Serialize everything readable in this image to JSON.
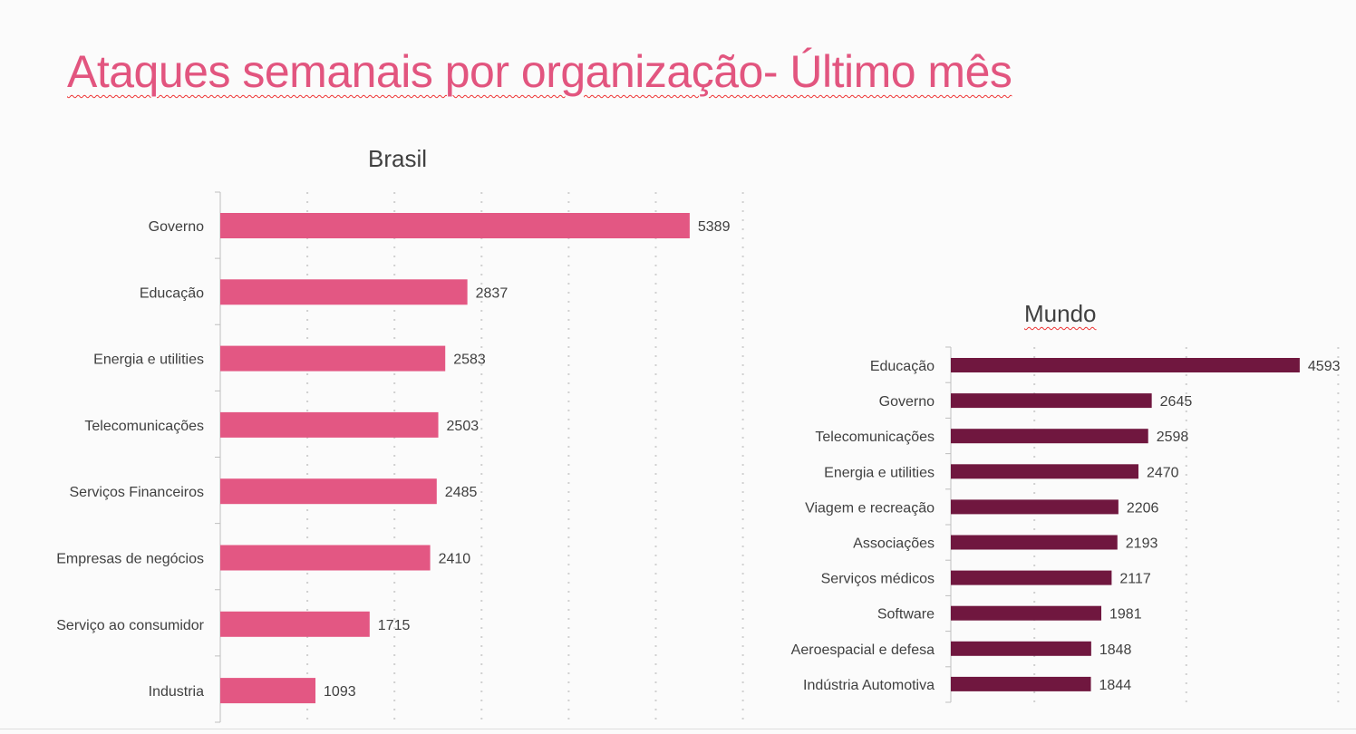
{
  "page": {
    "title": "Ataques semanais por organização-  Último mês"
  },
  "chart_data": [
    {
      "type": "bar",
      "orientation": "horizontal",
      "title": "Brasil",
      "categories": [
        "Governo",
        "Educação",
        "Energia e utilities",
        "Telecomunicações",
        "Serviços Financeiros",
        "Empresas de negócios",
        "Serviço ao consumidor",
        "Industria"
      ],
      "values": [
        5389,
        2837,
        2583,
        2503,
        2485,
        2410,
        1715,
        1093
      ],
      "xlim": [
        0,
        6000
      ],
      "grid": true,
      "color": "#e35783",
      "data_labels": true
    },
    {
      "type": "bar",
      "orientation": "horizontal",
      "title": "Mundo",
      "categories": [
        "Educação",
        "Governo",
        "Telecomunicações",
        "Energia e utilities",
        "Viagem e recreação",
        "Associações",
        "Serviços médicos",
        "Software",
        "Aeroespacial e defesa",
        "Indústria Automotiva"
      ],
      "values": [
        4593,
        2645,
        2598,
        2470,
        2206,
        2193,
        2117,
        1981,
        1848,
        1844
      ],
      "xlim": [
        0,
        5000
      ],
      "grid": true,
      "color": "#70173f",
      "data_labels": true
    }
  ]
}
